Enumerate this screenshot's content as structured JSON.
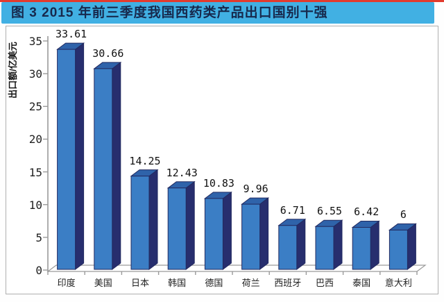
{
  "figure_title": "图 3  2015 年前三季度我国西药类产品出口国别十强",
  "chart_data": {
    "type": "bar",
    "style": "3d-column",
    "title": "图 3  2015 年前三季度我国西药类产品出口国别十强",
    "categories": [
      "印度",
      "美国",
      "日本",
      "韩国",
      "德国",
      "荷兰",
      "西班牙",
      "巴西",
      "泰国",
      "意大利"
    ],
    "values": [
      33.61,
      30.66,
      14.25,
      12.43,
      10.83,
      9.96,
      6.71,
      6.55,
      6.42,
      6
    ],
    "value_labels": [
      "33.61",
      "30.66",
      "14.25",
      "12.43",
      "10.83",
      "9.96",
      "6.71",
      "6.55",
      "6.42",
      "6"
    ],
    "xlabel": "",
    "ylabel": "出口额/亿美元",
    "ylim": [
      0,
      35
    ],
    "yticks": [
      0,
      5,
      10,
      15,
      20,
      25,
      30,
      35
    ],
    "grid": false,
    "legend": null,
    "data_labels_shown": true
  },
  "colors": {
    "title_band": "#41b0e3",
    "title_text": "#17294d",
    "top_rule": "#e23b2e",
    "bar_front": "#3b7ec5",
    "bar_top": "#2f63aa",
    "bar_side": "#272e6e",
    "bar_outline": "#222a60",
    "axis": "#9a9a9a",
    "floor_fill": "#ffffff"
  }
}
